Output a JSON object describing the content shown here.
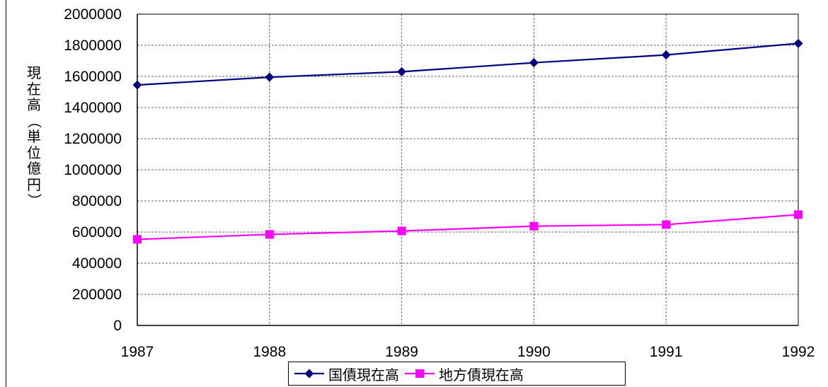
{
  "chart_data": {
    "type": "line",
    "title": "",
    "xlabel": "",
    "ylabel": "現在高（単位億円）",
    "x": [
      "1987",
      "1988",
      "1989",
      "1990",
      "1991",
      "1992"
    ],
    "ylim": [
      0,
      2000000
    ],
    "yticks": [
      "0",
      "200000",
      "400000",
      "600000",
      "800000",
      "1000000",
      "1200000",
      "1400000",
      "1600000",
      "1800000",
      "2000000"
    ],
    "grid": true,
    "legend_position": "bottom",
    "series": [
      {
        "name": "国債現在高",
        "color": "#000080",
        "marker": "diamond",
        "values": [
          1545000,
          1595000,
          1630000,
          1688000,
          1738000,
          1812000
        ]
      },
      {
        "name": "地方債現在高",
        "color": "#FF00FF",
        "marker": "square",
        "values": [
          553000,
          585000,
          607000,
          638000,
          648000,
          712000
        ]
      }
    ]
  }
}
